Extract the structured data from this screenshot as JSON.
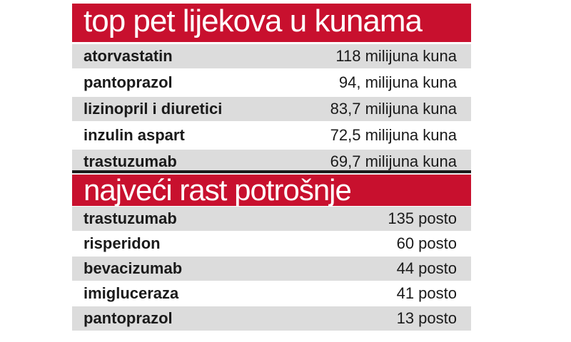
{
  "top_table": {
    "title": "top pet lijekova u kunama",
    "rows": [
      {
        "name": "atorvastatin",
        "value": "118 milijuna kuna"
      },
      {
        "name": "pantoprazol",
        "value": "94, milijuna kuna"
      },
      {
        "name": "lizinopril i diuretici",
        "value": "83,7 milijuna kuna"
      },
      {
        "name": "inzulin aspart",
        "value": "72,5 milijuna kuna"
      },
      {
        "name": "trastuzumab",
        "value": "69,7 milijuna kuna"
      }
    ]
  },
  "growth_table": {
    "title": "najveći rast potrošnje",
    "rows": [
      {
        "name": "trastuzumab",
        "value": "135 posto"
      },
      {
        "name": "risperidon",
        "value": "60 posto"
      },
      {
        "name": "bevacizumab",
        "value": "44 posto"
      },
      {
        "name": "imigluceraza",
        "value": "41 posto"
      },
      {
        "name": "pantoprazol",
        "value": "13 posto"
      }
    ]
  },
  "colors": {
    "header_red": "#c8102e",
    "row_shade": "#dcdcdc",
    "text": "#1a1a1a"
  }
}
